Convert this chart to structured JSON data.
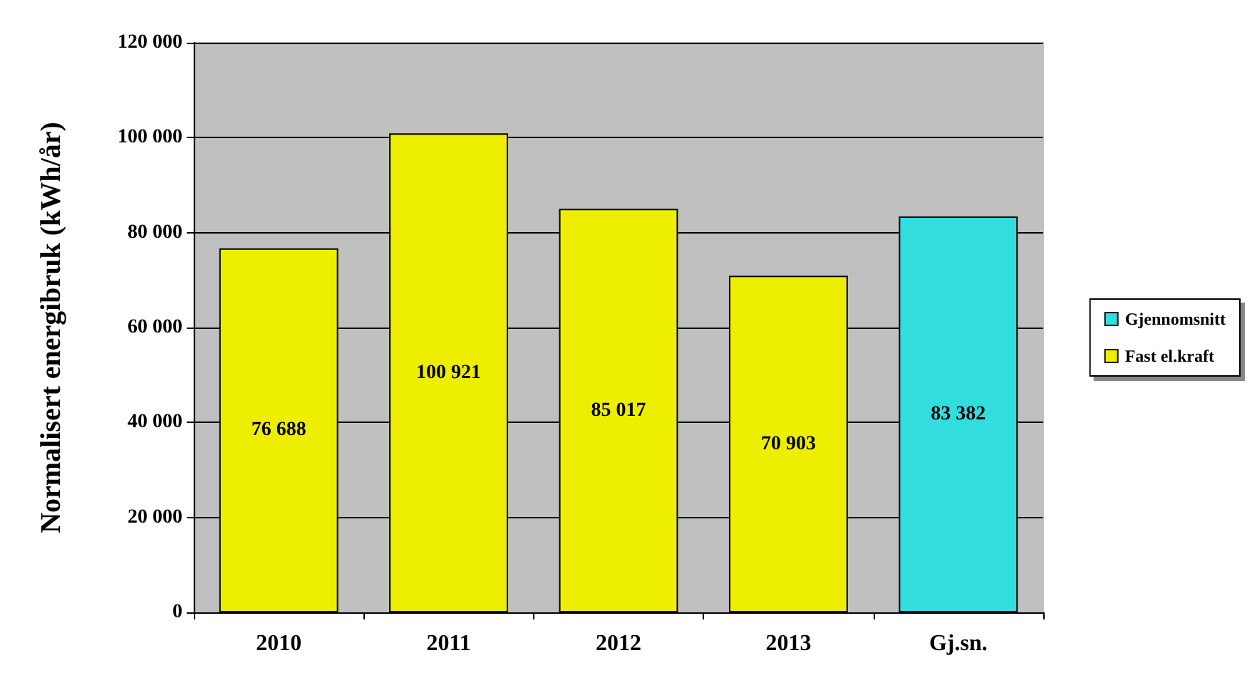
{
  "chart_data": {
    "type": "bar",
    "ylabel": "Normalisert energibruk (kWh/år)",
    "categories": [
      "2010",
      "2011",
      "2012",
      "2013",
      "Gj.sn."
    ],
    "stacked": true,
    "series": [
      {
        "name": "Gjennomsnitt",
        "color": "#33dddd",
        "values": [
          null,
          null,
          null,
          null,
          83382
        ],
        "value_labels": [
          null,
          null,
          null,
          null,
          "83 382"
        ]
      },
      {
        "name": "Fast el.kraft",
        "color": "#eeee00",
        "values": [
          76688,
          100921,
          85017,
          70903,
          null
        ],
        "value_labels": [
          "76 688",
          "100 921",
          "85 017",
          "70 903",
          null
        ]
      }
    ],
    "ylim": [
      0,
      120000
    ],
    "yticks": [
      {
        "value": 0,
        "label": "0"
      },
      {
        "value": 20000,
        "label": "20 000"
      },
      {
        "value": 40000,
        "label": "40 000"
      },
      {
        "value": 60000,
        "label": "60 000"
      },
      {
        "value": 80000,
        "label": "80 000"
      },
      {
        "value": 100000,
        "label": "100 000"
      },
      {
        "value": 120000,
        "label": "120 000"
      }
    ],
    "grid": "y",
    "legend": "right"
  }
}
